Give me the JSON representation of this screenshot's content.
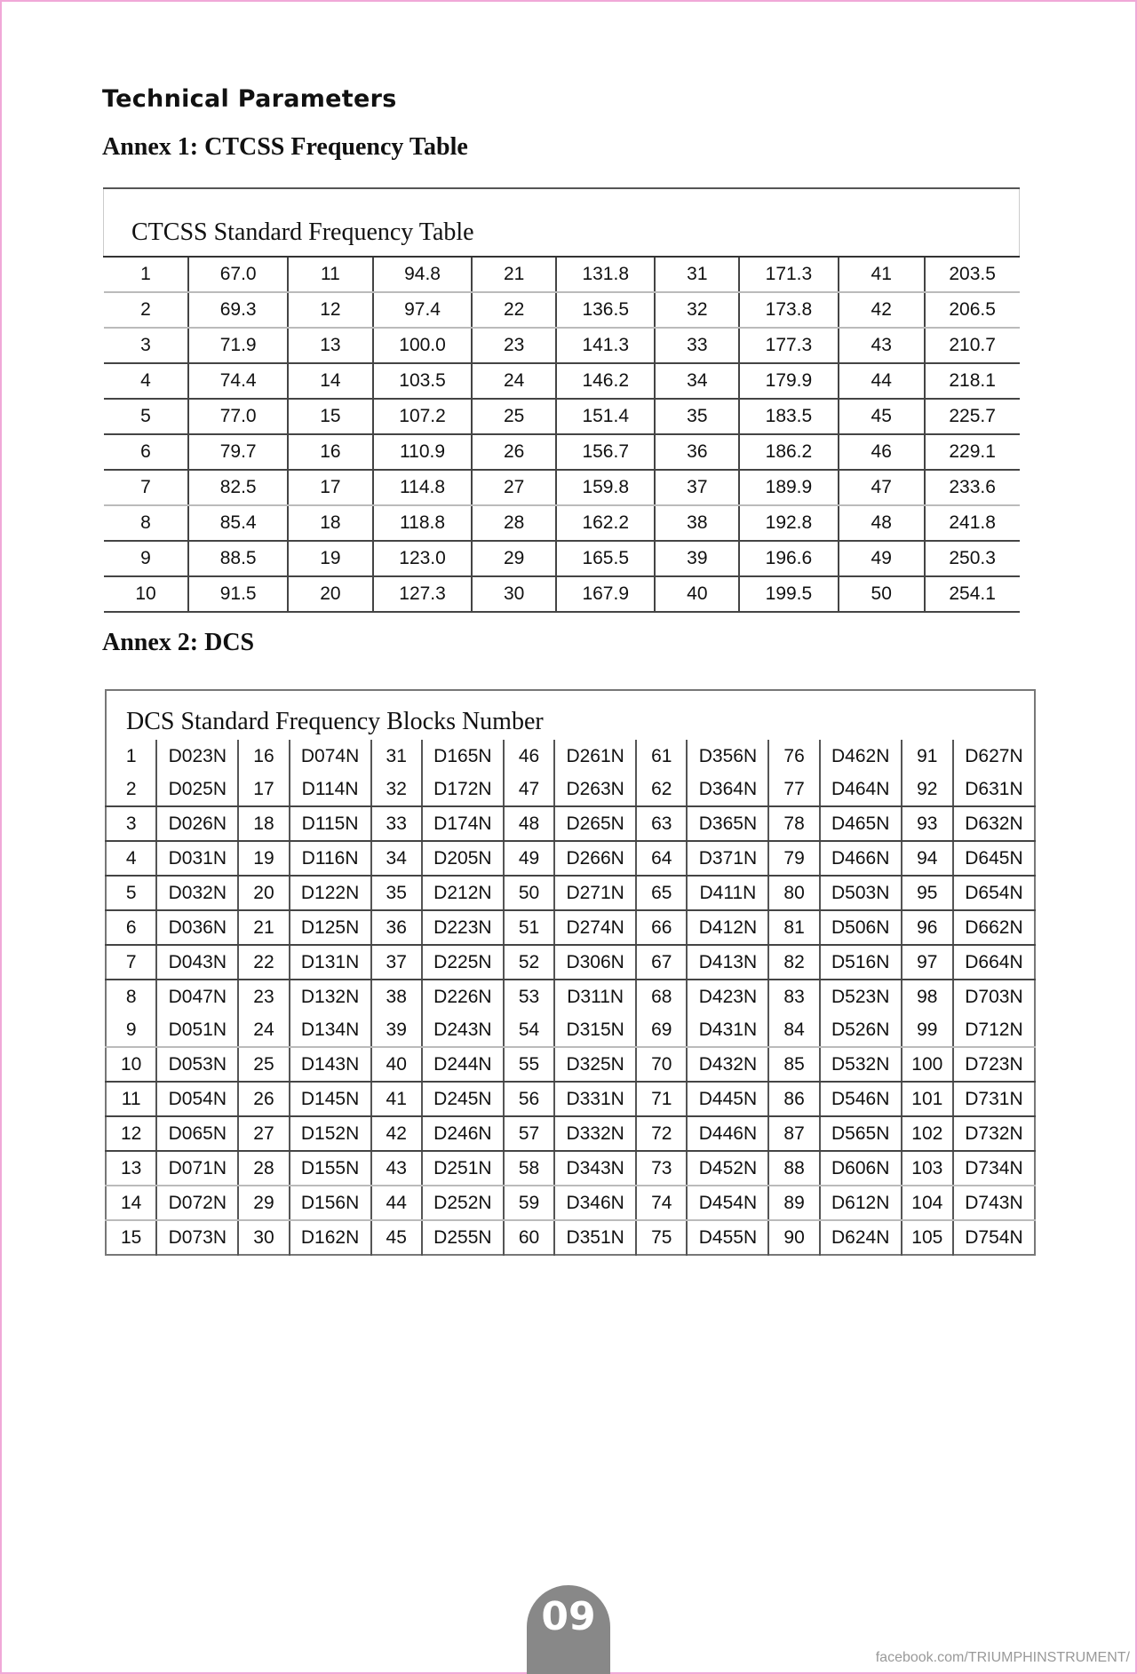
{
  "heading": "Technical Parameters",
  "annex1": {
    "title": "Annex 1: CTCSS Frequency Table",
    "table_caption": "CTCSS Standard Frequency Table",
    "entries": [
      [
        "1",
        "67.0"
      ],
      [
        "2",
        "69.3"
      ],
      [
        "3",
        "71.9"
      ],
      [
        "4",
        "74.4"
      ],
      [
        "5",
        "77.0"
      ],
      [
        "6",
        "79.7"
      ],
      [
        "7",
        "82.5"
      ],
      [
        "8",
        "85.4"
      ],
      [
        "9",
        "88.5"
      ],
      [
        "10",
        "91.5"
      ],
      [
        "11",
        "94.8"
      ],
      [
        "12",
        "97.4"
      ],
      [
        "13",
        "100.0"
      ],
      [
        "14",
        "103.5"
      ],
      [
        "15",
        "107.2"
      ],
      [
        "16",
        "110.9"
      ],
      [
        "17",
        "114.8"
      ],
      [
        "18",
        "118.8"
      ],
      [
        "19",
        "123.0"
      ],
      [
        "20",
        "127.3"
      ],
      [
        "21",
        "131.8"
      ],
      [
        "22",
        "136.5"
      ],
      [
        "23",
        "141.3"
      ],
      [
        "24",
        "146.2"
      ],
      [
        "25",
        "151.4"
      ],
      [
        "26",
        "156.7"
      ],
      [
        "27",
        "159.8"
      ],
      [
        "28",
        "162.2"
      ],
      [
        "29",
        "165.5"
      ],
      [
        "30",
        "167.9"
      ],
      [
        "31",
        "171.3"
      ],
      [
        "32",
        "173.8"
      ],
      [
        "33",
        "177.3"
      ],
      [
        "34",
        "179.9"
      ],
      [
        "35",
        "183.5"
      ],
      [
        "36",
        "186.2"
      ],
      [
        "37",
        "189.9"
      ],
      [
        "38",
        "192.8"
      ],
      [
        "39",
        "196.6"
      ],
      [
        "40",
        "199.5"
      ],
      [
        "41",
        "203.5"
      ],
      [
        "42",
        "206.5"
      ],
      [
        "43",
        "210.7"
      ],
      [
        "44",
        "218.1"
      ],
      [
        "45",
        "225.7"
      ],
      [
        "46",
        "229.1"
      ],
      [
        "47",
        "233.6"
      ],
      [
        "48",
        "241.8"
      ],
      [
        "49",
        "250.3"
      ],
      [
        "50",
        "254.1"
      ]
    ]
  },
  "annex2": {
    "title": "Annex 2: DCS",
    "table_caption": "DCS Standard Frequency Blocks Number",
    "codes": [
      "D023N",
      "D025N",
      "D026N",
      "D031N",
      "D032N",
      "D036N",
      "D043N",
      "D047N",
      "D051N",
      "D053N",
      "D054N",
      "D065N",
      "D071N",
      "D072N",
      "D073N",
      "D074N",
      "D114N",
      "D115N",
      "D116N",
      "D122N",
      "D125N",
      "D131N",
      "D132N",
      "D134N",
      "D143N",
      "D145N",
      "D152N",
      "D155N",
      "D156N",
      "D162N",
      "D165N",
      "D172N",
      "D174N",
      "D205N",
      "D212N",
      "D223N",
      "D225N",
      "D226N",
      "D243N",
      "D244N",
      "D245N",
      "D246N",
      "D251N",
      "D252N",
      "D255N",
      "D261N",
      "D263N",
      "D265N",
      "D266N",
      "D271N",
      "D274N",
      "D306N",
      "D311N",
      "D315N",
      "D325N",
      "D331N",
      "D332N",
      "D343N",
      "D346N",
      "D351N",
      "D356N",
      "D364N",
      "D365N",
      "D371N",
      "D411N",
      "D412N",
      "D413N",
      "D423N",
      "D431N",
      "D432N",
      "D445N",
      "D446N",
      "D452N",
      "D454N",
      "D455N",
      "D462N",
      "D464N",
      "D465N",
      "D466N",
      "D503N",
      "D506N",
      "D516N",
      "D523N",
      "D526N",
      "D532N",
      "D546N",
      "D565N",
      "D606N",
      "D612N",
      "D624N",
      "D627N",
      "D631N",
      "D632N",
      "D645N",
      "D654N",
      "D662N",
      "D664N",
      "D703N",
      "D712N",
      "D723N",
      "D731N",
      "D732N",
      "D734N",
      "D743N",
      "D754N"
    ]
  },
  "page_number": "09",
  "footer": "facebook.com/TRIUMPHINSTRUMENT/"
}
